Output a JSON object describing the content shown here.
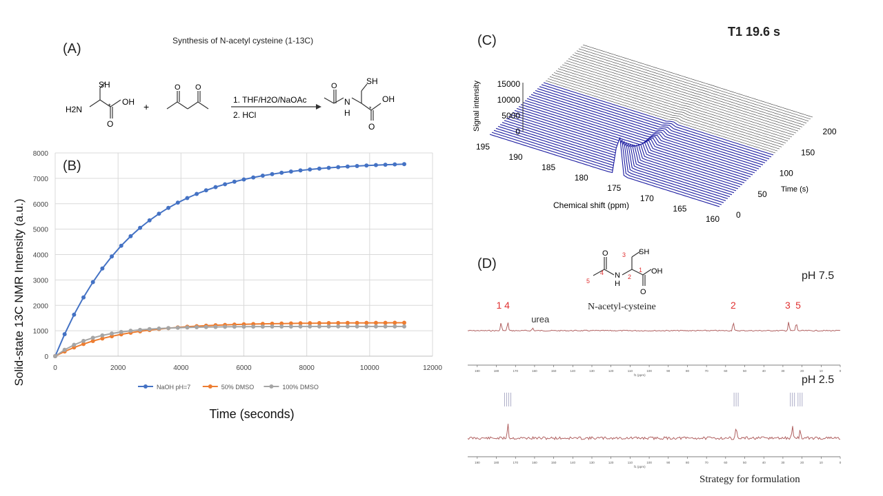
{
  "panel_a": {
    "label": "(A)",
    "title": "Synthesis of N-acetyl cysteine (1-13C)",
    "reagent_plus": "+",
    "step1": "1. THF/H2O/NaOAc",
    "step2": "2. HCl",
    "atoms": {
      "sh": "SH",
      "h2n": "H2N",
      "oh": "OH",
      "o": "O",
      "star": "*",
      "n": "N",
      "h": "H"
    }
  },
  "panel_b": {
    "label": "(B)"
  },
  "panel_c": {
    "label": "(C)",
    "t1_label": "T1 19.6 s",
    "ylabel": "Signal intensity",
    "xlabel": "Chemical shift (ppm)",
    "zlabel": "Time (s)",
    "intensity_ticks": [
      "15000",
      "10000",
      "5000",
      "0"
    ],
    "shift_ticks": [
      "195",
      "190",
      "185",
      "180",
      "175",
      "170",
      "165",
      "160"
    ],
    "time_ticks": [
      "200",
      "150",
      "100",
      "50",
      "0"
    ]
  },
  "panel_d": {
    "label": "(D)",
    "compound_name": "N-acetyl-cysteine",
    "ph_top": "pH 7.5",
    "ph_bottom": "pH 2.5",
    "peak_labels": [
      "1 4",
      "urea",
      "2",
      "3",
      "5"
    ],
    "atom_numbers": [
      "1",
      "2",
      "3",
      "4",
      "5"
    ],
    "ppm_axis_ticks": [
      "190",
      "180",
      "170",
      "160",
      "150",
      "140",
      "130",
      "120",
      "110",
      "100",
      "90",
      "80",
      "70",
      "60",
      "50",
      "40",
      "30",
      "20",
      "10",
      "0"
    ],
    "axis_unit": "f1 (ppm)",
    "footer": "Strategy for formulation",
    "colors": {
      "spectrum": "#b06060",
      "labels": "#e03030"
    }
  },
  "chart_data": {
    "type": "line",
    "title": "",
    "xlabel": "Time (seconds)",
    "ylabel": "Solid-state 13C NMR Intensity (a.u.)",
    "xlim": [
      0,
      12000
    ],
    "ylim": [
      0,
      8000
    ],
    "x_ticks": [
      "0",
      "2000",
      "4000",
      "6000",
      "8000",
      "10000",
      "12000"
    ],
    "y_ticks": [
      "0",
      "1000",
      "2000",
      "3000",
      "4000",
      "5000",
      "6000",
      "7000",
      "8000"
    ],
    "legend_position": "bottom",
    "series": [
      {
        "name": "NaOH pH=7",
        "color": "#4472c4",
        "asymptote": 7650,
        "rate": 0.0004
      },
      {
        "name": "50% DMSO",
        "color": "#ed7d31",
        "asymptote": 1320,
        "rate": 0.0005
      },
      {
        "name": "100% DMSO",
        "color": "#a5a5a5",
        "asymptote": 1170,
        "rate": 0.0008
      }
    ],
    "x": [
      0,
      300,
      600,
      900,
      1200,
      1500,
      1800,
      2100,
      2400,
      2700,
      3000,
      3300,
      3600,
      3900,
      4200,
      4500,
      4800,
      5100,
      5400,
      5700,
      6000,
      6300,
      6600,
      6900,
      7200,
      7500,
      7800,
      8100,
      8400,
      8700,
      9000,
      9300,
      9600,
      9900,
      10200,
      10500,
      10800,
      11100
    ]
  }
}
